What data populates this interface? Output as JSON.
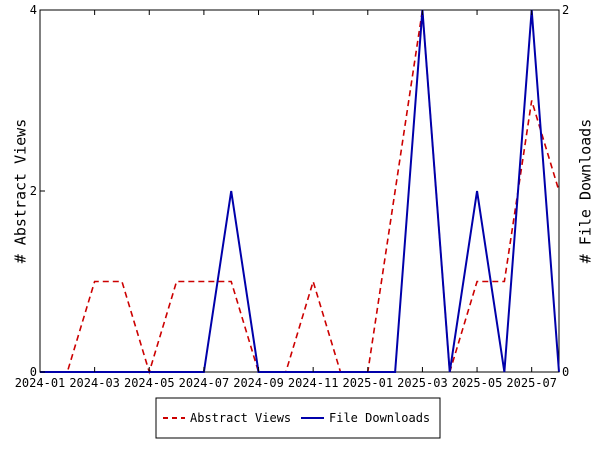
{
  "chart_data": {
    "type": "line",
    "title": "",
    "xlabel": "",
    "ylabel": "# Abstract Views",
    "y2label": "# File Downloads",
    "x": [
      "2024-01",
      "2024-02",
      "2024-03",
      "2024-04",
      "2024-05",
      "2024-06",
      "2024-07",
      "2024-08",
      "2024-09",
      "2024-10",
      "2024-11",
      "2024-12",
      "2025-01",
      "2025-02",
      "2025-03",
      "2025-04",
      "2025-05",
      "2025-06",
      "2025-07",
      "2025-08"
    ],
    "x_tick_labels": [
      "2024-01",
      "2024-03",
      "2024-05",
      "2024-07",
      "2024-09",
      "2024-11",
      "2025-01",
      "2025-03",
      "2025-05",
      "2025-07"
    ],
    "ylim": [
      0,
      4
    ],
    "y_ticks": [
      0,
      2,
      4
    ],
    "y2lim": [
      0,
      2
    ],
    "y2_ticks": [
      0,
      2
    ],
    "grid": false,
    "legend_position": "bottom-center",
    "series": [
      {
        "name": "Abstract Views",
        "axis": "left",
        "color": "#cc0000",
        "line_style": "dashed",
        "values": [
          0,
          0,
          1,
          1,
          0,
          1,
          1,
          1,
          0,
          0,
          1,
          0,
          0,
          2,
          4,
          0,
          1,
          1,
          3,
          2
        ]
      },
      {
        "name": "File Downloads",
        "axis": "right",
        "color": "#0000aa",
        "line_style": "solid",
        "values": [
          0,
          0,
          0,
          0,
          0,
          0,
          0,
          1,
          0,
          0,
          0,
          0,
          0,
          0,
          2,
          0,
          1,
          0,
          2,
          0
        ]
      }
    ]
  }
}
